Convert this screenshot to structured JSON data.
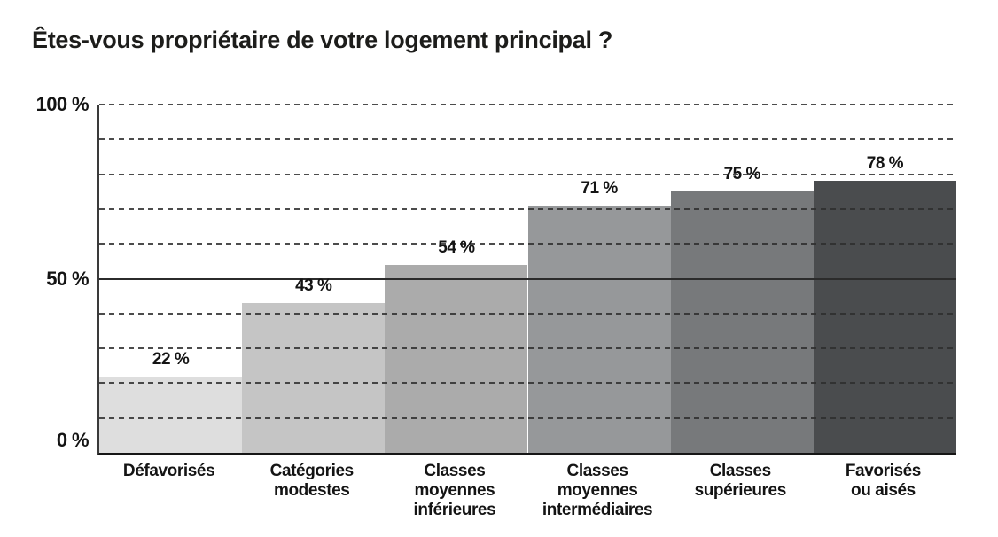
{
  "chart_data": {
    "type": "bar",
    "title": "Êtes-vous propriétaire de votre logement principal ?",
    "categories": [
      "Défavorisés",
      "Catégories\nmodestes",
      "Classes\nmoyennes\ninférieures",
      "Classes\nmoyennes\nintermédiaires",
      "Classes\nsupérieures",
      "Favorisés\nou aisés"
    ],
    "values": [
      22,
      43,
      54,
      71,
      75,
      78
    ],
    "value_labels": [
      "22 %",
      "43 %",
      "54 %",
      "71 %",
      "75 %",
      "78 %"
    ],
    "bar_colors": [
      "#dedede",
      "#c5c5c5",
      "#ababab",
      "#96989a",
      "#77797b",
      "#4a4c4e"
    ],
    "xlabel": "",
    "ylabel": "",
    "ylim": [
      0,
      100
    ],
    "y_ticks": [
      {
        "value": 100,
        "label": "100 %"
      },
      {
        "value": 50,
        "label": "50 %"
      },
      {
        "value": 0,
        "label": "0 %"
      }
    ],
    "grid": {
      "dashed_every": 10,
      "solid_at": 50,
      "dash_color": "#2d2d2d",
      "solid_color": "#2b2b2b",
      "axis_color": "#161616"
    },
    "legend": "none"
  }
}
